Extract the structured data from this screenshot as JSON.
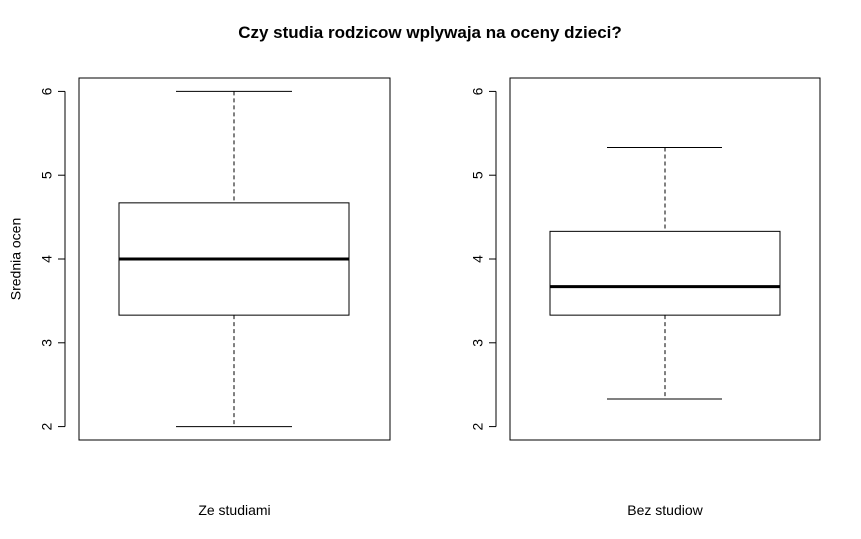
{
  "title": "Czy studia rodzicow wplywaja na oceny dzieci?",
  "colors": {
    "stroke": "#000000",
    "background": "#ffffff"
  },
  "chart_data": [
    {
      "type": "boxplot",
      "xlabel": "Ze studiami",
      "ylabel": "Srednia ocen",
      "ylim": [
        1.84,
        6.16
      ],
      "yticks": [
        "2",
        "3",
        "4",
        "5",
        "6"
      ],
      "yticks_values": [
        2,
        3,
        4,
        5,
        6
      ],
      "whisker_low": 2.0,
      "q1": 3.33,
      "median": 4.0,
      "q3": 4.67,
      "whisker_high": 6.0,
      "grid": false
    },
    {
      "type": "boxplot",
      "xlabel": "Bez studiow",
      "ylabel": "",
      "ylim": [
        1.84,
        6.16
      ],
      "yticks": [
        "2",
        "3",
        "4",
        "5",
        "6"
      ],
      "yticks_values": [
        2,
        3,
        4,
        5,
        6
      ],
      "whisker_low": 2.33,
      "q1": 3.33,
      "median": 3.67,
      "q3": 4.33,
      "whisker_high": 5.33,
      "grid": false
    }
  ]
}
